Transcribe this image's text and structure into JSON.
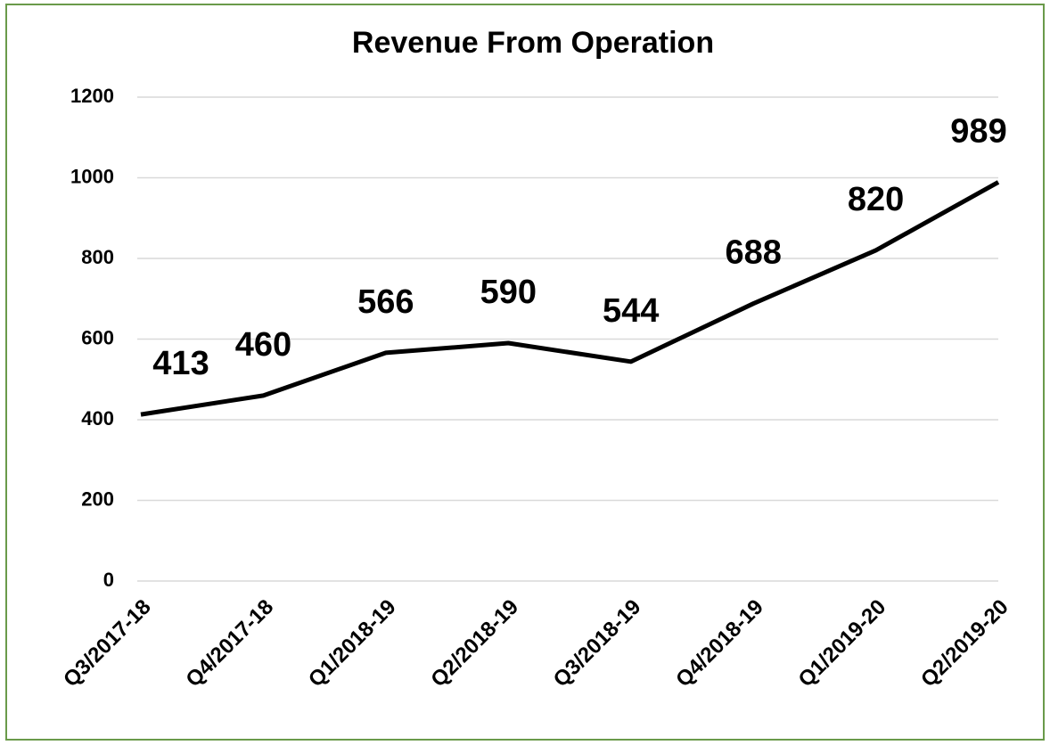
{
  "chart_data": {
    "type": "line",
    "title": "Revenue From Operation",
    "categories": [
      "Q3/2017-18",
      "Q4/2017-18",
      "Q1/2018-19",
      "Q2/2018-19",
      "Q3/2018-19",
      "Q4/2018-19",
      "Q1/2019-20",
      "Q2/2019-20"
    ],
    "values": [
      413,
      460,
      566,
      590,
      544,
      688,
      820,
      989
    ],
    "color": "#000000",
    "ylim": [
      0,
      1200
    ],
    "yticks": [
      0,
      200,
      400,
      600,
      800,
      1000,
      1200
    ],
    "grid": true
  }
}
